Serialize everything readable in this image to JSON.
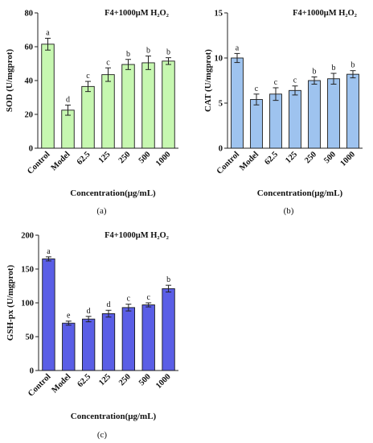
{
  "chart_data": [
    {
      "type": "bar",
      "panel_label": "(a)",
      "title": "F4+1000μM H₂O₂",
      "xlabel": "Concentration(μg/mL)",
      "ylabel": "SOD (U/mgprot)",
      "categories": [
        "Control",
        "Model",
        "62.5",
        "125",
        "250",
        "500",
        "1000"
      ],
      "values": [
        61.5,
        22.5,
        36.5,
        43.5,
        49.5,
        50.5,
        51.5
      ],
      "errors": [
        3.5,
        3,
        3,
        4,
        3,
        4,
        2
      ],
      "significance": [
        "a",
        "d",
        "c",
        "c",
        "b",
        "b",
        "b"
      ],
      "ylim": [
        0,
        80
      ],
      "yticks": [
        0,
        20,
        40,
        60,
        80
      ],
      "bar_color": "#c6f7b0"
    },
    {
      "type": "bar",
      "panel_label": "(b)",
      "title": "F4+1000μM H₂O₂",
      "xlabel": "Concentration(μg/mL)",
      "ylabel": "CAT (U/mgprot)",
      "categories": [
        "Control",
        "Model",
        "62.5",
        "125",
        "250",
        "500",
        "1000"
      ],
      "values": [
        10.0,
        5.4,
        6.0,
        6.4,
        7.5,
        7.7,
        8.2
      ],
      "errors": [
        0.5,
        0.6,
        0.7,
        0.5,
        0.4,
        0.6,
        0.4
      ],
      "significance": [
        "a",
        "c",
        "c",
        "c",
        "b",
        "b",
        "b"
      ],
      "ylim": [
        0,
        15
      ],
      "yticks": [
        0,
        5,
        10,
        15
      ],
      "bar_color": "#9ec3ef"
    },
    {
      "type": "bar",
      "panel_label": "(c)",
      "title": "F4+1000μM H₂O₂",
      "xlabel": "Concentration(μg/mL)",
      "ylabel": "GSH-px (U/mgprot)",
      "categories": [
        "Control",
        "Model",
        "62.5",
        "125",
        "250",
        "500",
        "1000"
      ],
      "values": [
        165,
        70,
        76,
        84,
        93,
        97,
        121
      ],
      "errors": [
        3,
        3,
        4,
        5,
        5,
        3,
        5
      ],
      "significance": [
        "a",
        "e",
        "d",
        "d",
        "c",
        "c",
        "b"
      ],
      "ylim": [
        0,
        200
      ],
      "yticks": [
        0,
        50,
        100,
        150,
        200
      ],
      "bar_color": "#5a5ee6"
    }
  ]
}
